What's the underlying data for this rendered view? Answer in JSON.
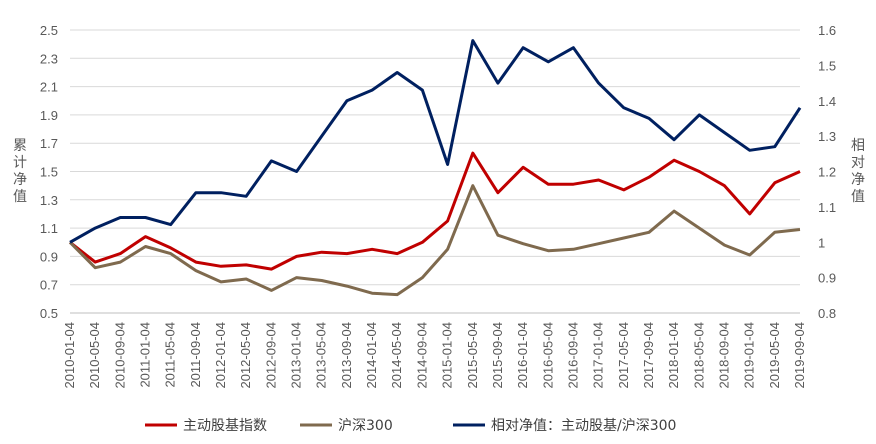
{
  "chart_data": {
    "type": "line",
    "x": [
      "2010-01-04",
      "2010-05-04",
      "2010-09-04",
      "2011-01-04",
      "2011-05-04",
      "2011-09-04",
      "2012-01-04",
      "2012-05-04",
      "2012-09-04",
      "2013-01-04",
      "2013-05-04",
      "2013-09-04",
      "2014-01-04",
      "2014-05-04",
      "2014-09-04",
      "2015-01-04",
      "2015-05-04",
      "2015-09-04",
      "2016-01-04",
      "2016-05-04",
      "2016-09-04",
      "2017-01-04",
      "2017-05-04",
      "2017-09-04",
      "2018-01-04",
      "2018-05-04",
      "2018-09-04",
      "2019-01-04",
      "2019-05-04",
      "2019-09-04"
    ],
    "left_axis": {
      "label": "累计净值",
      "ylim": [
        0.5,
        2.5
      ],
      "ticks": [
        "2.5",
        "2.3",
        "2.1",
        "1.9",
        "1.7",
        "1.5",
        "1.3",
        "1.1",
        "0.9",
        "0.7",
        "0.5"
      ]
    },
    "right_axis": {
      "label": "相对净值",
      "ylim": [
        0.8,
        1.6
      ],
      "ticks": [
        "1.6",
        "1.5",
        "1.4",
        "1.3",
        "1.2",
        "1.1",
        "1",
        "0.9",
        "0.8"
      ]
    },
    "grid": true,
    "legend_position": "bottom",
    "series": [
      {
        "name": "主动股基指数",
        "axis": "left",
        "color": "#C00000",
        "values": [
          1.0,
          0.86,
          0.92,
          1.04,
          0.96,
          0.86,
          0.83,
          0.84,
          0.81,
          0.9,
          0.93,
          0.92,
          0.95,
          0.92,
          1.0,
          1.15,
          1.63,
          1.35,
          1.53,
          1.41,
          1.41,
          1.44,
          1.37,
          1.46,
          1.58,
          1.5,
          1.4,
          1.2,
          1.42,
          1.5
        ]
      },
      {
        "name": "沪深300",
        "axis": "left",
        "color": "#7F6A4E",
        "values": [
          1.0,
          0.82,
          0.86,
          0.97,
          0.92,
          0.8,
          0.72,
          0.74,
          0.66,
          0.75,
          0.73,
          0.69,
          0.64,
          0.63,
          0.75,
          0.95,
          1.4,
          1.05,
          0.99,
          0.94,
          0.95,
          0.99,
          1.03,
          1.07,
          1.22,
          1.1,
          0.98,
          0.91,
          1.07,
          1.09
        ]
      },
      {
        "name": "相对净值：主动股基/沪深300",
        "axis": "right",
        "color": "#002060",
        "values": [
          1.0,
          1.04,
          1.07,
          1.07,
          1.05,
          1.14,
          1.14,
          1.13,
          1.23,
          1.2,
          1.3,
          1.4,
          1.43,
          1.48,
          1.43,
          1.22,
          1.57,
          1.45,
          1.55,
          1.51,
          1.55,
          1.45,
          1.38,
          1.35,
          1.29,
          1.36,
          1.31,
          1.26,
          1.27,
          1.38
        ]
      }
    ]
  }
}
